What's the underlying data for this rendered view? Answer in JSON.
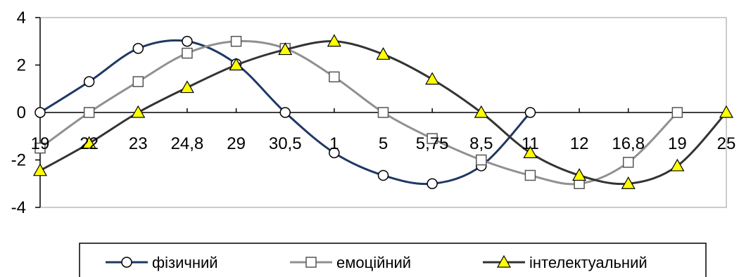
{
  "chart_data": {
    "type": "line",
    "categories": [
      "19",
      "22",
      "23",
      "24,8",
      "29",
      "30,5",
      "1",
      "5",
      "5,75",
      "8,5",
      "11",
      "12",
      "16,8",
      "19",
      "25"
    ],
    "ylim": [
      -4,
      4
    ],
    "yticks": [
      "-4",
      "-2",
      "0",
      "2",
      "4"
    ],
    "grid": false,
    "legend_position": "bottom",
    "series": [
      {
        "name": "фізичний",
        "color": "#1f3864",
        "marker": "circle",
        "values": [
          0,
          1.3,
          2.7,
          3.0,
          2.05,
          0,
          -1.7,
          -2.65,
          -3.0,
          -2.25,
          0,
          null,
          null,
          null,
          null
        ]
      },
      {
        "name": "емоційний",
        "color": "#909090",
        "marker": "square",
        "values": [
          -1.5,
          0,
          1.3,
          2.5,
          3.0,
          2.7,
          1.5,
          0,
          -1.1,
          -2.0,
          -2.65,
          -3.0,
          -2.1,
          0,
          null
        ]
      },
      {
        "name": "інтелектуальний",
        "color": "#333333",
        "marker": "triangle",
        "values": [
          -2.45,
          -1.3,
          0,
          1.05,
          2.0,
          2.65,
          3.0,
          2.45,
          1.4,
          0,
          -1.7,
          -2.65,
          -3.0,
          -2.25,
          0
        ]
      }
    ]
  }
}
